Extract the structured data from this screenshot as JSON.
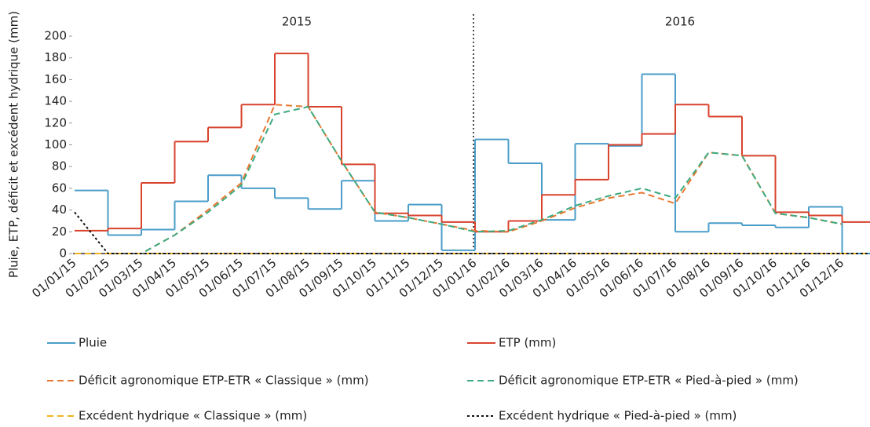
{
  "chart_data": {
    "type": "line",
    "y_label": "Pluie, ETP, déficit et excédent hydrique (mm)",
    "annotations": [
      "2015",
      "2016"
    ],
    "categories": [
      "01/01/15",
      "01/02/15",
      "01/03/15",
      "01/04/15",
      "01/05/15",
      "01/06/15",
      "01/07/15",
      "01/08/15",
      "01/09/15",
      "01/10/15",
      "01/11/15",
      "01/12/15",
      "01/01/16",
      "01/02/16",
      "01/03/16",
      "01/04/16",
      "01/05/16",
      "01/06/16",
      "01/07/16",
      "01/08/16",
      "01/09/16",
      "01/10/16",
      "01/11/16",
      "01/12/16"
    ],
    "ylim": [
      0,
      200
    ],
    "yticks": [
      0,
      20,
      40,
      60,
      80,
      100,
      120,
      140,
      160,
      180,
      200
    ],
    "grid": false,
    "series": [
      {
        "name": "Pluie",
        "color": "#4a9dc9",
        "style": "solid",
        "step": true,
        "values": [
          58,
          17,
          22,
          48,
          72,
          60,
          51,
          41,
          67,
          30,
          45,
          3,
          105,
          83,
          31,
          101,
          99,
          165,
          20,
          28,
          26,
          24,
          43,
          0
        ]
      },
      {
        "name": "ETP (mm)",
        "color": "#d8432e",
        "style": "solid",
        "step": true,
        "values": [
          21,
          23,
          65,
          103,
          116,
          137,
          184,
          135,
          82,
          37,
          35,
          29,
          20,
          30,
          54,
          68,
          100,
          110,
          137,
          126,
          90,
          38,
          35,
          29
        ]
      },
      {
        "name": "Déficit agronomique ETP-ETR « Classique » (mm)",
        "color": "#e8772f",
        "style": "dashed",
        "step": false,
        "values": [
          0,
          0,
          0,
          17,
          40,
          65,
          137,
          135,
          85,
          38,
          33,
          27,
          21,
          20,
          30,
          42,
          51,
          56,
          46,
          93,
          90,
          37,
          33,
          27
        ]
      },
      {
        "name": "Déficit agronomique ETP-ETR « Pied-à-pied » (mm)",
        "color": "#3daa80",
        "style": "dashed",
        "step": false,
        "values": [
          0,
          0,
          0,
          17,
          38,
          63,
          128,
          135,
          85,
          38,
          33,
          27,
          20,
          21,
          31,
          44,
          53,
          60,
          51,
          93,
          90,
          37,
          33,
          27
        ]
      },
      {
        "name": "Excédent hydrique « Classique » (mm)",
        "color": "#f0b41e",
        "style": "dashed",
        "step": false,
        "values": [
          0,
          0,
          0,
          0,
          0,
          0,
          0,
          0,
          0,
          0,
          0,
          0,
          0,
          0,
          0,
          0,
          0,
          0,
          0,
          0,
          0,
          0,
          0,
          0
        ]
      },
      {
        "name": "Excédent hydrique « Pied-à-pied » (mm)",
        "color": "#111111",
        "style": "dotted",
        "step": false,
        "values": [
          38,
          0,
          0,
          0,
          0,
          0,
          0,
          0,
          0,
          0,
          0,
          0,
          0,
          0,
          0,
          0,
          0,
          0,
          0,
          0,
          0,
          0,
          0,
          0
        ]
      }
    ]
  }
}
